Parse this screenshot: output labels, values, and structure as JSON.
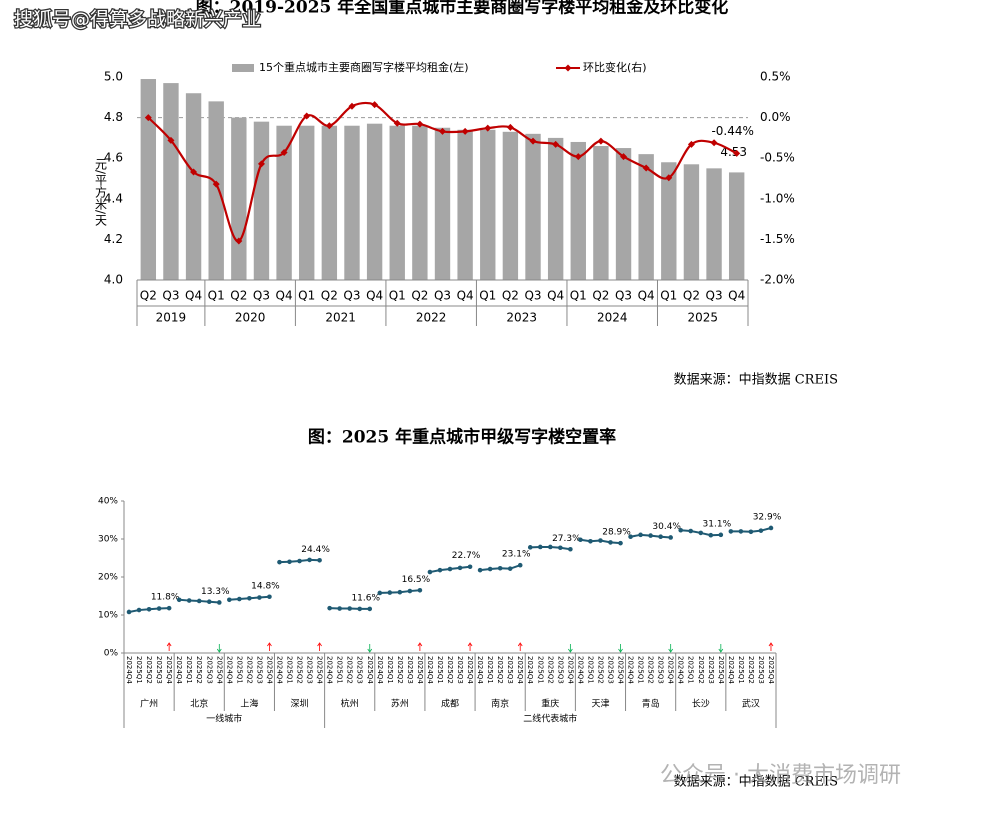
{
  "watermark_top": "搜狐号@得算多战略新兴产业",
  "watermark_bottom": "公众号 · 大消费市场调研",
  "chart_data": [
    {
      "type": "bar",
      "title": "图：2019-2025 年全国重点城市主要商圈写字楼平均租金及环比变化",
      "y_label": "元/平方米/天",
      "source": "数据来源：中指数据 CREIS",
      "legend": "top",
      "zero_line": true,
      "groups": [
        {
          "name": "2019",
          "categories": [
            "Q2",
            "Q3",
            "Q4"
          ]
        },
        {
          "name": "2020",
          "categories": [
            "Q1",
            "Q2",
            "Q3",
            "Q4"
          ]
        },
        {
          "name": "2021",
          "categories": [
            "Q1",
            "Q2",
            "Q3",
            "Q4"
          ]
        },
        {
          "name": "2022",
          "categories": [
            "Q1",
            "Q2",
            "Q3",
            "Q4"
          ]
        },
        {
          "name": "2023",
          "categories": [
            "Q1",
            "Q2",
            "Q3",
            "Q4"
          ]
        },
        {
          "name": "2024",
          "categories": [
            "Q1",
            "Q2",
            "Q3",
            "Q4"
          ]
        },
        {
          "name": "2025",
          "categories": [
            "Q1",
            "Q2",
            "Q3",
            "Q4"
          ]
        }
      ],
      "series": [
        {
          "name": "15个重点城市主要商圈写字楼平均租金(左)",
          "type": "bar",
          "color": "#a6a6a6",
          "values": [
            4.99,
            4.97,
            4.92,
            4.88,
            4.8,
            4.78,
            4.76,
            4.76,
            4.76,
            4.76,
            4.77,
            4.76,
            4.76,
            4.75,
            4.74,
            4.74,
            4.73,
            4.72,
            4.7,
            4.68,
            4.66,
            4.65,
            4.62,
            4.58,
            4.57,
            4.55,
            4.53
          ],
          "value_labels": [
            null,
            null,
            null,
            null,
            null,
            null,
            null,
            null,
            null,
            null,
            null,
            null,
            null,
            null,
            null,
            null,
            null,
            null,
            null,
            null,
            null,
            null,
            null,
            null,
            null,
            null,
            "4.53"
          ]
        },
        {
          "name": "环比变化(右)",
          "type": "line",
          "axis": "y2",
          "color": "#c00000",
          "values": [
            0.0,
            -0.28,
            -0.67,
            -0.82,
            -1.52,
            -0.57,
            -0.43,
            0.02,
            -0.1,
            0.14,
            0.16,
            -0.07,
            -0.08,
            -0.17,
            -0.17,
            -0.13,
            -0.12,
            -0.29,
            -0.33,
            -0.48,
            -0.29,
            -0.48,
            -0.62,
            -0.74,
            -0.33,
            -0.31,
            -0.44
          ],
          "value_labels": [
            null,
            null,
            null,
            null,
            null,
            null,
            null,
            null,
            null,
            null,
            null,
            null,
            null,
            null,
            null,
            null,
            null,
            null,
            null,
            null,
            null,
            null,
            null,
            null,
            null,
            null,
            "-0.44%"
          ]
        }
      ],
      "ylim": [
        4.0,
        5.0
      ],
      "yticks": [
        {
          "value": 4,
          "label": "4.0"
        },
        4.2,
        4.4,
        4.6,
        4.8,
        {
          "value": 5,
          "label": "5.0"
        }
      ],
      "y2lim": [
        -2.0,
        0.5
      ],
      "y2ticks": [
        {
          "value": -2,
          "label": "-2.0%"
        },
        {
          "value": -1.5,
          "label": "-1.5%"
        },
        {
          "value": -1,
          "label": "-1.0%"
        },
        {
          "value": -0.5,
          "label": "-0.5%"
        },
        {
          "value": 0,
          "label": "0.0%"
        },
        {
          "value": 0.5,
          "label": "0.5%"
        }
      ]
    },
    {
      "type": "line",
      "title": "图：2025 年重点城市甲级写字楼空置率",
      "source": "数据来源：中指数据 CREIS",
      "color": "#1f5a73",
      "up_color": "#ff0000",
      "down_color": "#00b050",
      "periods": [
        "2024Q4",
        "2025Q1",
        "2025Q2",
        "2025Q3",
        "2025Q4"
      ],
      "ylim": [
        0,
        40
      ],
      "yticks": [
        {
          "value": 0,
          "label": "0%"
        },
        {
          "value": 10,
          "label": "10%"
        },
        {
          "value": 20,
          "label": "20%"
        },
        {
          "value": 30,
          "label": "30%"
        },
        {
          "value": 40,
          "label": "40%"
        }
      ],
      "groups": [
        {
          "name": "一线城市",
          "cities": [
            {
              "name": "广州",
              "values": [
                10.8,
                11.3,
                11.5,
                11.7,
                11.8
              ],
              "value_labels": [
                null,
                null,
                null,
                null,
                "11.8%"
              ]
            },
            {
              "name": "北京",
              "values": [
                14.0,
                13.8,
                13.7,
                13.5,
                13.3
              ],
              "value_labels": [
                null,
                null,
                null,
                null,
                "13.3%"
              ]
            },
            {
              "name": "上海",
              "values": [
                14.0,
                14.2,
                14.4,
                14.6,
                14.8
              ],
              "value_labels": [
                null,
                null,
                null,
                null,
                "14.8%"
              ]
            },
            {
              "name": "深圳",
              "values": [
                23.9,
                24.0,
                24.2,
                24.5,
                24.4
              ],
              "value_labels": [
                null,
                null,
                null,
                null,
                "24.4%"
              ]
            }
          ]
        },
        {
          "name": "二线代表城市",
          "cities": [
            {
              "name": "杭州",
              "values": [
                11.8,
                11.7,
                11.7,
                11.6,
                11.6
              ],
              "value_labels": [
                null,
                null,
                null,
                null,
                "11.6%"
              ]
            },
            {
              "name": "苏州",
              "values": [
                15.8,
                15.9,
                16.0,
                16.3,
                16.5
              ],
              "value_labels": [
                null,
                null,
                null,
                null,
                "16.5%"
              ]
            },
            {
              "name": "成都",
              "values": [
                21.3,
                21.8,
                22.1,
                22.4,
                22.7
              ],
              "value_labels": [
                null,
                null,
                null,
                null,
                "22.7%"
              ]
            },
            {
              "name": "南京",
              "values": [
                21.8,
                22.1,
                22.3,
                22.2,
                23.1
              ],
              "value_labels": [
                null,
                null,
                null,
                null,
                "23.1%"
              ]
            },
            {
              "name": "重庆",
              "values": [
                27.8,
                27.9,
                27.9,
                27.7,
                27.3
              ],
              "value_labels": [
                null,
                null,
                null,
                null,
                "27.3%"
              ]
            },
            {
              "name": "天津",
              "values": [
                29.8,
                29.4,
                29.6,
                29.1,
                28.9
              ],
              "value_labels": [
                null,
                null,
                null,
                null,
                "28.9%"
              ]
            },
            {
              "name": "青岛",
              "values": [
                30.6,
                31.1,
                30.9,
                30.6,
                30.4
              ],
              "value_labels": [
                null,
                null,
                null,
                null,
                "30.4%"
              ]
            },
            {
              "name": "长沙",
              "values": [
                32.3,
                32.1,
                31.6,
                31.0,
                31.1
              ],
              "value_labels": [
                null,
                null,
                null,
                null,
                "31.1%"
              ]
            },
            {
              "name": "武汉",
              "values": [
                32.0,
                32.0,
                31.9,
                32.2,
                32.9
              ],
              "value_labels": [
                null,
                null,
                null,
                null,
                "32.9%"
              ]
            }
          ]
        }
      ]
    }
  ]
}
